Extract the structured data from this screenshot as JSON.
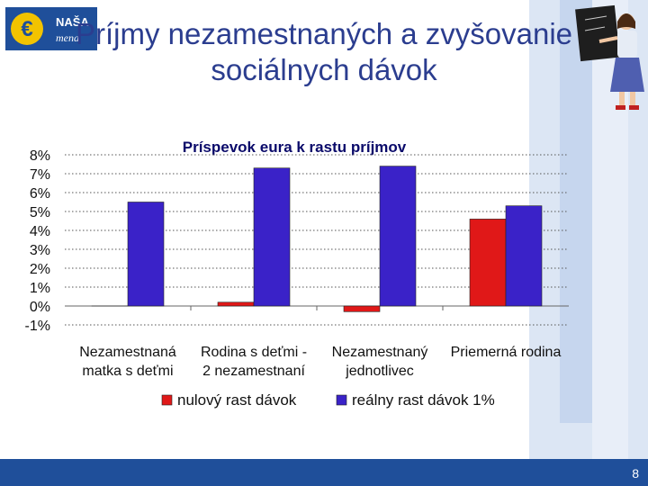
{
  "slide": {
    "title_line1": "Príjmy nezamestnaných a zvyšovanie",
    "title_line2": "sociálnych dávok",
    "page_number": "8",
    "logo": {
      "line1": "NAŠA",
      "line2": "mena"
    }
  },
  "colors": {
    "series1": "#e01818",
    "series2": "#3a22c8",
    "title": "#2b3d8f",
    "footer": "#1f4f9a"
  },
  "chart_data": {
    "type": "bar",
    "title": "Príspevok eura k rastu príjmov",
    "categories": [
      [
        "Nezamestnaná",
        "matka s deťmi"
      ],
      [
        "Rodina s deťmi -",
        "2 nezamestnaní"
      ],
      [
        "Nezamestnaný",
        "jednotlivec"
      ],
      [
        "Priemerná rodina",
        ""
      ]
    ],
    "series": [
      {
        "name": "nulový rast dávok",
        "values": [
          0,
          0.2,
          -0.3,
          4.6
        ]
      },
      {
        "name": "reálny rast dávok 1%",
        "values": [
          5.5,
          7.3,
          7.4,
          5.3
        ]
      }
    ],
    "ylim": [
      -1,
      8
    ],
    "yticks": [
      "8%",
      "7%",
      "6%",
      "5%",
      "4%",
      "3%",
      "2%",
      "1%",
      "0%",
      "-1%"
    ],
    "grid": true,
    "legend": "bottom"
  }
}
